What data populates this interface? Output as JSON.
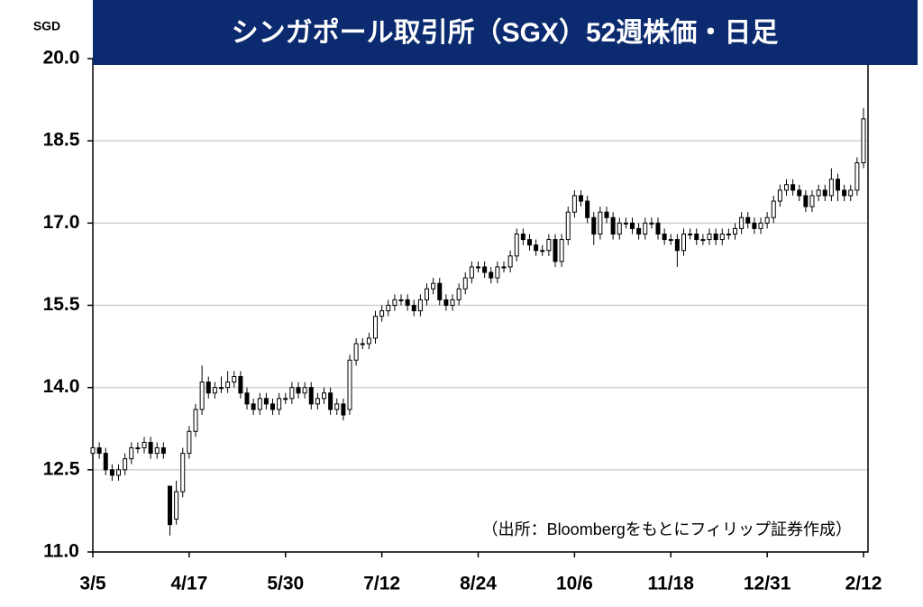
{
  "chart_data": {
    "type": "candlestick",
    "title": "シンガポール取引所（SGX）52週株価・日足",
    "y_unit": "SGD",
    "annotation": "（出所：Bloombergをもとにフィリップ証券作成）",
    "categories": [
      "3/5",
      null,
      null,
      null,
      null,
      null,
      null,
      null,
      null,
      null,
      null,
      null,
      null,
      null,
      null,
      "4/17",
      null,
      null,
      null,
      null,
      null,
      null,
      null,
      null,
      null,
      null,
      null,
      null,
      null,
      null,
      "5/30",
      null,
      null,
      null,
      null,
      null,
      null,
      null,
      null,
      null,
      null,
      null,
      null,
      null,
      null,
      "7/12",
      null,
      null,
      null,
      null,
      null,
      null,
      null,
      null,
      null,
      null,
      null,
      null,
      null,
      null,
      "8/24",
      null,
      null,
      null,
      null,
      null,
      null,
      null,
      null,
      null,
      null,
      null,
      null,
      null,
      null,
      "10/6",
      null,
      null,
      null,
      null,
      null,
      null,
      null,
      null,
      null,
      null,
      null,
      null,
      null,
      null,
      "11/18",
      null,
      null,
      null,
      null,
      null,
      null,
      null,
      null,
      null,
      null,
      null,
      null,
      null,
      null,
      "12/31",
      null,
      null,
      null,
      null,
      null,
      null,
      null,
      null,
      null,
      null,
      null,
      null,
      null,
      null,
      "2/12"
    ],
    "open": [
      12.8,
      12.9,
      12.8,
      12.5,
      12.4,
      12.5,
      12.7,
      12.9,
      12.9,
      13.0,
      12.8,
      12.9,
      12.2,
      11.6,
      12.1,
      12.8,
      13.2,
      13.6,
      14.1,
      13.9,
      14.0,
      14.0,
      14.1,
      14.2,
      13.9,
      13.7,
      13.6,
      13.8,
      13.7,
      13.6,
      13.8,
      13.8,
      14.0,
      13.9,
      14.0,
      13.7,
      13.8,
      13.9,
      13.6,
      13.7,
      13.6,
      14.5,
      14.8,
      14.8,
      14.9,
      15.3,
      15.4,
      15.5,
      15.6,
      15.6,
      15.5,
      15.4,
      15.6,
      15.8,
      15.9,
      15.6,
      15.5,
      15.6,
      15.8,
      16.0,
      16.2,
      16.2,
      16.1,
      16.0,
      16.2,
      16.2,
      16.4,
      16.8,
      16.7,
      16.6,
      16.5,
      16.5,
      16.7,
      16.3,
      16.7,
      17.2,
      17.5,
      17.4,
      17.1,
      16.8,
      17.2,
      17.1,
      16.8,
      17.0,
      17.0,
      16.9,
      16.8,
      17.0,
      17.0,
      16.8,
      16.7,
      16.7,
      16.5,
      16.8,
      16.8,
      16.7,
      16.7,
      16.8,
      16.7,
      16.8,
      16.8,
      16.9,
      17.1,
      17.0,
      16.9,
      17.0,
      17.1,
      17.4,
      17.6,
      17.7,
      17.6,
      17.5,
      17.3,
      17.5,
      17.6,
      17.5,
      17.8,
      17.6,
      17.5,
      17.6,
      18.1
    ],
    "high": [
      13.0,
      13.0,
      12.9,
      12.6,
      12.6,
      12.8,
      13.0,
      13.0,
      13.1,
      13.1,
      13.0,
      13.0,
      12.2,
      12.3,
      12.9,
      13.3,
      13.7,
      14.4,
      14.2,
      14.1,
      14.2,
      14.3,
      14.3,
      14.3,
      14.0,
      13.8,
      13.9,
      13.9,
      13.8,
      13.9,
      13.9,
      14.1,
      14.1,
      14.1,
      14.1,
      13.9,
      14.0,
      14.0,
      13.8,
      13.8,
      14.6,
      14.9,
      14.9,
      15.0,
      15.4,
      15.5,
      15.6,
      15.7,
      15.7,
      15.7,
      15.6,
      15.7,
      15.9,
      16.0,
      16.0,
      15.7,
      15.7,
      15.9,
      16.1,
      16.3,
      16.3,
      16.3,
      16.2,
      16.3,
      16.3,
      16.5,
      16.9,
      16.9,
      16.8,
      16.7,
      16.6,
      16.8,
      16.8,
      16.8,
      17.3,
      17.6,
      17.6,
      17.5,
      17.2,
      17.3,
      17.3,
      17.2,
      17.1,
      17.1,
      17.1,
      17.0,
      17.1,
      17.1,
      17.1,
      16.9,
      16.8,
      16.8,
      16.9,
      16.9,
      16.9,
      16.8,
      16.9,
      16.9,
      16.9,
      16.9,
      17.0,
      17.2,
      17.2,
      17.1,
      17.1,
      17.2,
      17.5,
      17.7,
      17.8,
      17.8,
      17.7,
      17.6,
      17.6,
      17.7,
      17.7,
      18.0,
      17.9,
      17.7,
      17.7,
      18.2,
      19.1
    ],
    "low": [
      12.7,
      12.7,
      12.4,
      12.3,
      12.3,
      12.4,
      12.6,
      12.8,
      12.8,
      12.7,
      12.7,
      12.7,
      11.3,
      11.5,
      12.0,
      12.7,
      13.1,
      13.5,
      13.8,
      13.8,
      13.9,
      13.9,
      14.0,
      13.8,
      13.6,
      13.5,
      13.5,
      13.6,
      13.5,
      13.5,
      13.7,
      13.7,
      13.8,
      13.8,
      13.6,
      13.6,
      13.7,
      13.5,
      13.5,
      13.4,
      13.5,
      14.4,
      14.7,
      14.7,
      14.8,
      15.2,
      15.3,
      15.4,
      15.5,
      15.4,
      15.3,
      15.3,
      15.5,
      15.7,
      15.5,
      15.4,
      15.4,
      15.5,
      15.7,
      15.9,
      16.1,
      16.0,
      15.9,
      15.9,
      16.1,
      16.1,
      16.3,
      16.6,
      16.5,
      16.4,
      16.4,
      16.4,
      16.2,
      16.2,
      16.6,
      17.1,
      17.3,
      17.0,
      16.6,
      16.7,
      17.0,
      16.7,
      16.7,
      16.9,
      16.8,
      16.7,
      16.7,
      16.9,
      16.7,
      16.6,
      16.6,
      16.2,
      16.4,
      16.7,
      16.6,
      16.6,
      16.6,
      16.6,
      16.6,
      16.7,
      16.7,
      16.8,
      16.9,
      16.8,
      16.8,
      16.9,
      17.0,
      17.3,
      17.5,
      17.5,
      17.4,
      17.2,
      17.2,
      17.4,
      17.4,
      17.4,
      17.4,
      17.4,
      17.4,
      17.5,
      18.0
    ],
    "close": [
      12.9,
      12.8,
      12.5,
      12.4,
      12.5,
      12.7,
      12.9,
      12.9,
      13.0,
      12.8,
      12.9,
      12.8,
      11.5,
      12.1,
      12.8,
      13.2,
      13.6,
      14.1,
      13.9,
      14.0,
      14.0,
      14.1,
      14.2,
      13.9,
      13.7,
      13.6,
      13.8,
      13.7,
      13.6,
      13.8,
      13.8,
      14.0,
      13.9,
      14.0,
      13.7,
      13.8,
      13.9,
      13.6,
      13.7,
      13.5,
      14.5,
      14.8,
      14.8,
      14.9,
      15.3,
      15.4,
      15.5,
      15.6,
      15.6,
      15.5,
      15.4,
      15.6,
      15.8,
      15.9,
      15.6,
      15.5,
      15.6,
      15.8,
      16.0,
      16.2,
      16.2,
      16.1,
      16.0,
      16.2,
      16.2,
      16.4,
      16.8,
      16.7,
      16.6,
      16.5,
      16.5,
      16.7,
      16.3,
      16.7,
      17.2,
      17.5,
      17.4,
      17.1,
      16.8,
      17.2,
      17.1,
      16.8,
      17.0,
      17.0,
      16.9,
      16.8,
      17.0,
      17.0,
      16.8,
      16.7,
      16.7,
      16.5,
      16.8,
      16.8,
      16.7,
      16.7,
      16.8,
      16.7,
      16.8,
      16.8,
      16.9,
      17.1,
      17.0,
      16.9,
      17.0,
      17.1,
      17.4,
      17.6,
      17.7,
      17.6,
      17.5,
      17.3,
      17.5,
      17.6,
      17.5,
      17.8,
      17.6,
      17.5,
      17.6,
      18.1,
      18.9
    ],
    "up_color": "#ffffff",
    "down_color": "#000000",
    "ylim": [
      11,
      20
    ],
    "yticks": [
      {
        "value": 11,
        "label": "11.0"
      },
      12.5,
      {
        "value": 14,
        "label": "14.0"
      },
      15.5,
      {
        "value": 17,
        "label": "17.0"
      },
      18.5,
      {
        "value": 20,
        "label": "20.0"
      }
    ],
    "grid": true
  }
}
